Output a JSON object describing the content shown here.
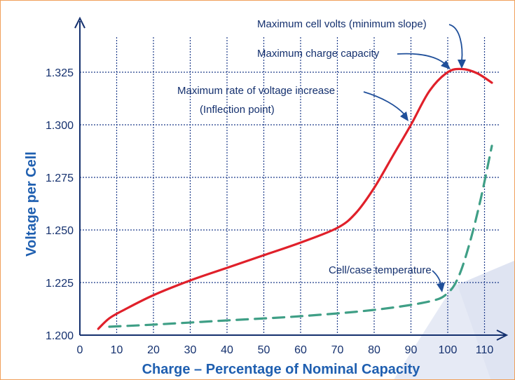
{
  "chart_data": {
    "type": "line",
    "xlabel": "Charge – Percentage of Nominal Capacity",
    "ylabel": "Voltage per Cell",
    "x_ticks": [
      "0",
      "10",
      "20",
      "30",
      "40",
      "50",
      "60",
      "70",
      "80",
      "90",
      "100",
      "110"
    ],
    "y_ticks": [
      "1.200",
      "1.225",
      "1.250",
      "1.275",
      "1.300",
      "1.325"
    ],
    "xlim": [
      0,
      115
    ],
    "ylim": [
      1.2,
      1.3325
    ],
    "grid": true,
    "series": [
      {
        "color": "#e0202a",
        "style": "solid",
        "x": [
          5,
          8,
          12,
          20,
          30,
          40,
          50,
          60,
          70,
          75,
          80,
          85,
          90,
          95,
          100,
          104,
          108,
          112
        ],
        "y": [
          1.203,
          1.208,
          1.212,
          1.219,
          1.226,
          1.232,
          1.238,
          1.244,
          1.251,
          1.258,
          1.27,
          1.285,
          1.3,
          1.316,
          1.325,
          1.3265,
          1.3245,
          1.32
        ]
      },
      {
        "color": "#3f9f86",
        "style": "dashed",
        "x": [
          8,
          20,
          40,
          60,
          80,
          95,
          100,
          103,
          106,
          109,
          112
        ],
        "y": [
          1.204,
          1.205,
          1.207,
          1.209,
          1.212,
          1.216,
          1.22,
          1.228,
          1.244,
          1.265,
          1.29
        ]
      }
    ],
    "annotations": [
      {
        "text": "Maximum cell volts (minimum slope)"
      },
      {
        "text": "Maximum charge capacity"
      },
      {
        "text": "Maximum rate of voltage increase"
      },
      {
        "text": "(Inflection point)"
      },
      {
        "text": "Cell/case temperature"
      }
    ],
    "highlight_tick": {
      "label": "110",
      "color": "#e0202a"
    },
    "colors": {
      "axis": "#14306e",
      "grid": "#1f3c8a",
      "arrow": "#1f4f9a",
      "watermark": "#dfe4f2"
    }
  }
}
